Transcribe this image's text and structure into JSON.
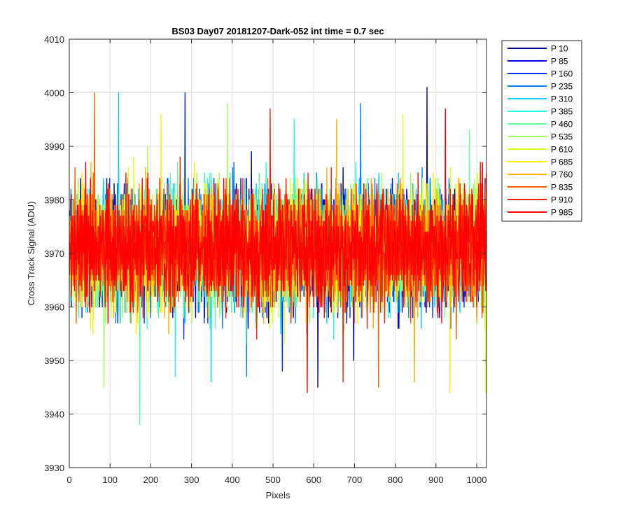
{
  "chart_data": {
    "type": "line",
    "title": "BS03 Day07 20181207-Dark-052 int time = 0.7 sec",
    "xlabel": "Pixels",
    "ylabel": "Cross Track Signal (ADU)",
    "xlim": [
      0,
      1024
    ],
    "ylim": [
      3930,
      4010
    ],
    "xticks": [
      0,
      100,
      200,
      300,
      400,
      500,
      600,
      700,
      800,
      900,
      1000
    ],
    "xtick_labels": [
      "0",
      "100",
      "200",
      "300",
      "400",
      "500",
      "600",
      "700",
      "800",
      "900",
      "1000"
    ],
    "yticks": [
      3930,
      3940,
      3950,
      3960,
      3970,
      3980,
      3990,
      4000,
      4010
    ],
    "ytick_labels": [
      "3930",
      "3940",
      "3950",
      "3960",
      "3970",
      "3980",
      "3990",
      "4000",
      "4010"
    ],
    "grid": true,
    "legend_position": "outside-right",
    "x_range": [
      1,
      1024
    ],
    "series": [
      {
        "name": "P 10",
        "color": "#00008f",
        "mean": 3971,
        "min": 3950,
        "max": 3989
      },
      {
        "name": "P 85",
        "color": "#0000df",
        "mean": 3971,
        "min": 3945,
        "max": 4001
      },
      {
        "name": "P 160",
        "color": "#0030ff",
        "mean": 3971,
        "min": 3948,
        "max": 4000
      },
      {
        "name": "P 235",
        "color": "#0080ff",
        "mean": 3971,
        "min": 3947,
        "max": 3998
      },
      {
        "name": "P 310",
        "color": "#00cfff",
        "mean": 3971,
        "min": 3946,
        "max": 4000
      },
      {
        "name": "P 385",
        "color": "#20ffdf",
        "mean": 3971,
        "min": 3947,
        "max": 3995
      },
      {
        "name": "P 460",
        "color": "#60ffa0",
        "mean": 3971,
        "min": 3938,
        "max": 3993
      },
      {
        "name": "P 535",
        "color": "#a0ff60",
        "mean": 3971,
        "min": 3945,
        "max": 3998
      },
      {
        "name": "P 610",
        "color": "#dfff20",
        "mean": 3971,
        "min": 3944,
        "max": 3996
      },
      {
        "name": "P 685",
        "color": "#ffef00",
        "mean": 3971,
        "min": 3944,
        "max": 3996
      },
      {
        "name": "P 760",
        "color": "#ffb000",
        "mean": 3971,
        "min": 3946,
        "max": 3995
      },
      {
        "name": "P 835",
        "color": "#ff6000",
        "mean": 3971,
        "min": 3945,
        "max": 4000
      },
      {
        "name": "P 910",
        "color": "#ff2000",
        "mean": 3971,
        "min": 3946,
        "max": 3997
      },
      {
        "name": "P 985",
        "color": "#ff0000",
        "mean": 3971,
        "min": 3944,
        "max": 3997
      }
    ]
  }
}
